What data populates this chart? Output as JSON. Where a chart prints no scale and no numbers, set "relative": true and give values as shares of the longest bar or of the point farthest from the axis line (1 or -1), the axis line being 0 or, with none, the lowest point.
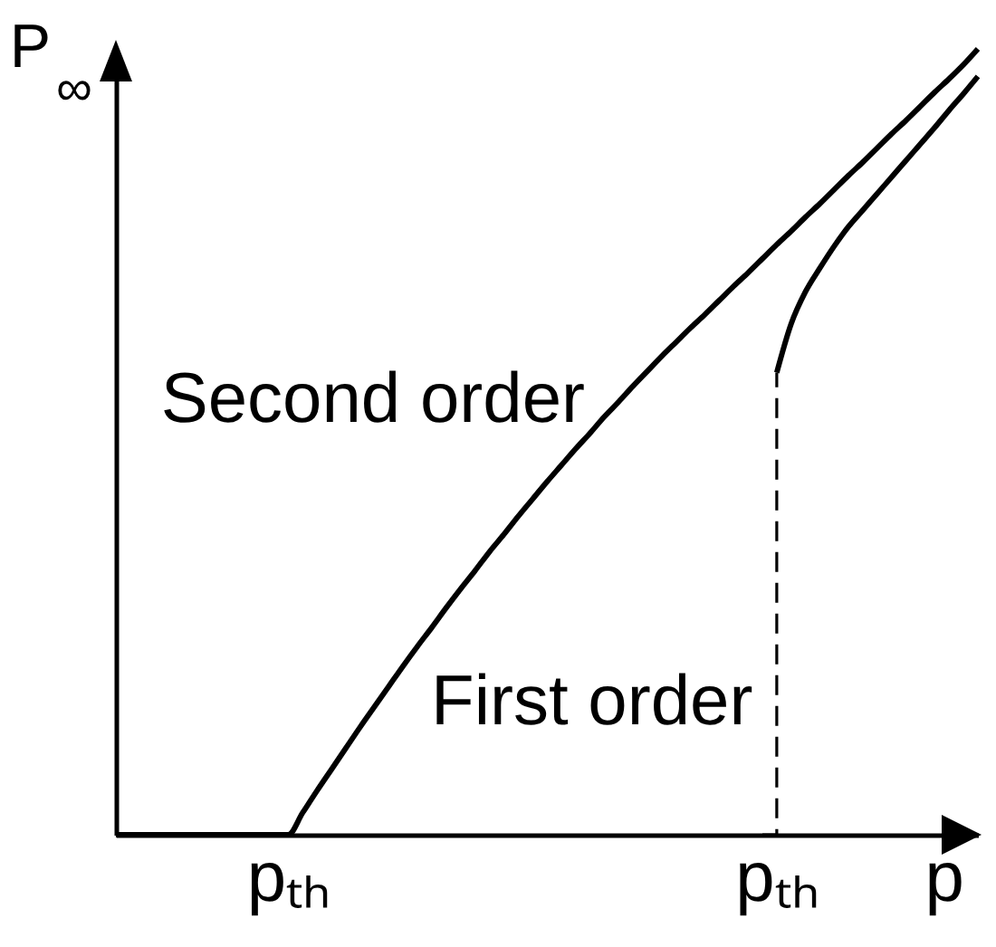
{
  "chart_data": {
    "type": "line",
    "xlabel": "p",
    "ylabel": "P$_{∞}$",
    "relative": true,
    "categories": [
      null,
      null,
      null,
      null,
      null,
      null,
      null,
      null,
      null,
      null,
      null,
      null,
      "pₜₕ",
      null,
      null,
      null,
      null,
      null,
      null,
      null,
      null,
      null,
      null,
      null,
      null,
      null,
      null,
      null,
      null,
      null,
      null,
      null,
      null,
      null,
      null,
      null,
      null,
      null,
      null,
      null,
      null,
      null,
      null,
      null,
      null,
      null,
      "pₜₕ",
      null,
      null,
      null,
      null,
      null,
      null,
      null,
      null,
      null,
      null,
      null,
      null,
      null,
      null
    ],
    "series": [
      {
        "name": "Second order",
        "color": "#000000",
        "values": [
          0,
          0,
          0,
          0,
          0,
          0,
          0,
          0,
          0,
          0,
          0,
          0,
          0,
          0.028,
          0.056,
          0.083,
          0.11,
          0.137,
          0.163,
          0.189,
          0.215,
          0.24,
          0.264,
          0.289,
          0.313,
          0.336,
          0.36,
          0.382,
          0.405,
          0.427,
          0.449,
          0.47,
          0.491,
          0.511,
          0.532,
          0.551,
          0.571,
          0.59,
          0.609,
          0.627,
          0.645,
          0.662,
          0.68,
          0.698,
          0.715,
          0.733,
          0.751,
          0.768,
          0.786,
          0.803,
          0.821,
          0.839,
          0.856,
          0.874,
          0.892,
          0.909,
          0.927,
          0.945,
          0.962,
          0.98,
          1
        ]
      },
      {
        "color": "#000000",
        "values": [
          null,
          null,
          null,
          null,
          null,
          null,
          null,
          null,
          null,
          null,
          null,
          null,
          null,
          null,
          null,
          null,
          null,
          null,
          null,
          null,
          null,
          null,
          null,
          null,
          null,
          null,
          null,
          null,
          null,
          null,
          null,
          null,
          null,
          null,
          null,
          null,
          null,
          null,
          null,
          null,
          null,
          null,
          null,
          null,
          null,
          null,
          0.588,
          0.65,
          0.691,
          0.721,
          0.749,
          0.774,
          0.795,
          0.816,
          0.837,
          0.858,
          0.879,
          0.9,
          0.922,
          0.943,
          0.965
        ]
      },
      {
        "type": "step",
        "color": "#000000",
        "line_style": "dashed",
        "values": [
          null,
          null,
          null,
          null,
          null,
          null,
          null,
          null,
          null,
          null,
          null,
          null,
          null,
          null,
          null,
          null,
          null,
          null,
          null,
          null,
          null,
          null,
          null,
          null,
          null,
          null,
          null,
          null,
          null,
          null,
          null,
          null,
          null,
          null,
          null,
          null,
          null,
          null,
          null,
          null,
          null,
          null,
          null,
          null,
          null,
          0,
          0.588,
          null,
          null,
          null,
          null,
          null,
          null,
          null,
          null,
          null,
          null,
          null,
          null,
          null,
          null
        ]
      }
    ],
    "annotations": [
      "First order"
    ]
  }
}
